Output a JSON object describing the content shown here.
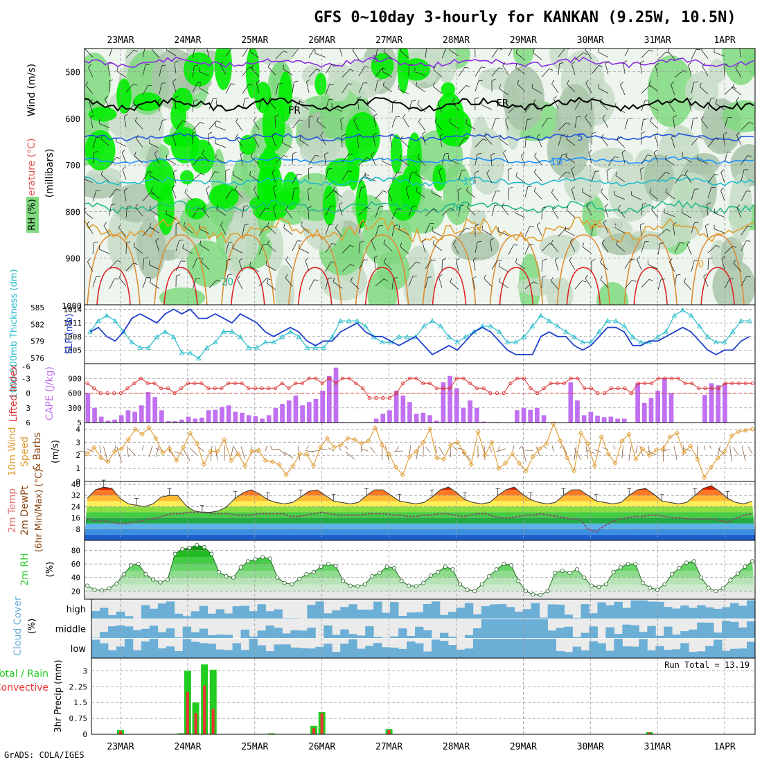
{
  "title": "GFS 0~10day 3-hourly for KANKAN (9.25W, 10.5N)",
  "footer": "GrADS: COLA/IGES",
  "dates": [
    "23MAR",
    "24MAR",
    "25MAR",
    "26MAR",
    "27MAR",
    "28MAR",
    "29MAR",
    "30MAR",
    "31MAR",
    "1APR"
  ],
  "colors": {
    "rh_dark": "#00ee00",
    "rh_mid": "#7fd97f",
    "rh_light": "#c7dcc7",
    "rh_pale": "#eef5ee",
    "slp": "#1e3fcc",
    "thickness": "#22bbcc",
    "lifted": "#dd3333",
    "cape": "#c070f0",
    "wind10": "#e09a30",
    "barb": "#8a5a3a",
    "cloud": "#6baed6",
    "cloud_bg": "#ebebeb",
    "rain_total": "#22cc22",
    "rain_conv": "#ee3333",
    "rh2m": "#33cc33"
  },
  "chart_data": [
    {
      "name": "upper-air",
      "type": "heatmap",
      "ylabel_wind": "Wind (m/s)",
      "ylabel_temp": "Temperature (°C)",
      "ylabel_rh": "RH (%)",
      "ylabel_units": "(millibars)",
      "yticks": [
        500,
        600,
        700,
        800,
        900
      ],
      "ylim": [
        1000,
        450
      ],
      "ybottom_label": "1000",
      "isotherm_labels": [
        {
          "text": "-5",
          "day": 3.7,
          "p": 472
        },
        {
          "text": "FR",
          "day": 2.5,
          "p": 582
        },
        {
          "text": "FR",
          "day": 5.6,
          "p": 567
        },
        {
          "text": "5",
          "day": 6.8,
          "p": 640
        },
        {
          "text": "10",
          "day": 6.4,
          "p": 692
        },
        {
          "text": "15",
          "day": 5.1,
          "p": 735
        },
        {
          "text": "20",
          "day": 4.9,
          "p": 792
        },
        {
          "text": "20",
          "day": 1.5,
          "p": 950
        },
        {
          "text": "25",
          "day": 5.2,
          "p": 841
        },
        {
          "text": "25",
          "day": 7.0,
          "p": 827
        },
        {
          "text": "30",
          "day": 7.3,
          "p": 828
        },
        {
          "text": "0",
          "day": 8.6,
          "p": 912
        }
      ]
    },
    {
      "name": "slp-thickness",
      "type": "line",
      "ylabel_left": "1000-500mb Thickness (dm)",
      "ylabel_right": "SLP (mb)",
      "left_ticks": [
        "585",
        "582",
        "579",
        "576"
      ],
      "right_ticks": [
        "1014",
        "1011",
        "1008",
        "1005"
      ],
      "slp_range": [
        1002,
        1015
      ],
      "thick_range": [
        574,
        585
      ],
      "slp": [
        1009,
        1010,
        1008,
        1007,
        1009,
        1012,
        1013,
        1012,
        1011,
        1013,
        1014,
        1013,
        1014,
        1012,
        1012,
        1013,
        1012,
        1011,
        1013,
        1012,
        1011,
        1009,
        1008,
        1009,
        1010,
        1009,
        1007,
        1006,
        1007,
        1007,
        1009,
        1010,
        1011,
        1009,
        1008,
        1008,
        1007,
        1006,
        1007,
        1008,
        1006,
        1004,
        1005,
        1006,
        1005,
        1007,
        1009,
        1010,
        1009,
        1007,
        1005,
        1004,
        1004,
        1004,
        1008,
        1009,
        1008,
        1008,
        1006,
        1005,
        1006,
        1008,
        1010,
        1010,
        1009,
        1006,
        1006,
        1007,
        1007,
        1008,
        1009,
        1010,
        1009,
        1007,
        1005,
        1004,
        1005,
        1005,
        1007,
        1008
      ],
      "thickness": [
        580,
        582,
        583,
        582,
        580,
        578,
        577,
        577,
        579,
        580,
        579,
        576,
        576,
        575,
        577,
        578,
        580,
        580,
        579,
        577,
        577,
        578,
        578,
        579,
        580,
        579,
        577,
        577,
        577,
        579,
        582,
        582,
        582,
        581,
        579,
        578,
        578,
        579,
        579,
        579,
        581,
        582,
        581,
        579,
        578,
        579,
        580,
        581,
        581,
        580,
        578,
        578,
        579,
        581,
        583,
        582,
        581,
        580,
        579,
        578,
        578,
        580,
        582,
        582,
        581,
        579,
        578,
        578,
        579,
        580,
        583,
        584,
        583,
        581,
        579,
        578,
        578,
        580,
        582,
        582
      ]
    },
    {
      "name": "cape-lifted",
      "type": "bar",
      "ylabel_left": "Lifted Index",
      "ylabel_right": "CAPE (J/kg)",
      "left_ticks": [
        "-3",
        "0",
        "3",
        "6"
      ],
      "right_ticks": [
        "900",
        "600",
        "300"
      ],
      "top_tick": "-6",
      "cape_range": [
        0,
        1200
      ],
      "li_range": [
        -6,
        6
      ],
      "cape": [
        600,
        300,
        120,
        40,
        60,
        150,
        250,
        220,
        350,
        620,
        520,
        250,
        30,
        30,
        60,
        120,
        80,
        100,
        250,
        260,
        320,
        350,
        220,
        200,
        150,
        130,
        80,
        150,
        300,
        380,
        450,
        550,
        350,
        420,
        480,
        650,
        950,
        1120,
        10,
        5,
        5,
        10,
        10,
        80,
        180,
        250,
        650,
        550,
        420,
        180,
        200,
        150,
        40,
        820,
        950,
        700,
        300,
        450,
        300,
        20,
        10,
        10,
        0,
        0,
        250,
        300,
        260,
        300,
        150,
        0,
        0,
        0,
        820,
        450,
        150,
        220,
        140,
        110,
        120,
        80,
        80,
        0,
        800,
        400,
        500,
        650,
        900,
        600,
        0,
        0,
        0,
        0,
        560,
        800,
        760,
        800,
        0,
        0,
        0,
        0
      ],
      "lifted_index": [
        -2,
        -1,
        0,
        0,
        0,
        0,
        -1,
        -2,
        -3,
        -2,
        -2,
        -1,
        -1,
        0,
        -1,
        -2,
        -2,
        -2,
        -1,
        -1,
        -1,
        -2,
        -2,
        -2,
        -1,
        -1,
        -1,
        -1,
        -1,
        -2,
        -1,
        -2,
        -2,
        -3,
        -3,
        -2,
        -3,
        -2,
        -3,
        -3,
        -2,
        -1,
        1,
        1,
        1,
        1,
        0,
        -2,
        -3,
        -3,
        -2,
        -2,
        -1,
        -1,
        -1,
        -3,
        -3,
        -2,
        -1,
        -1,
        0,
        0,
        0,
        -2,
        -3,
        -3,
        -1,
        0,
        -1,
        -2,
        -2,
        -2,
        -3,
        -3,
        -1,
        -1,
        0,
        0,
        -1,
        -1,
        -1,
        0,
        -2,
        -2,
        -2,
        -3,
        -3,
        -3,
        -3,
        -2,
        -2,
        -1,
        -1,
        -1,
        -1,
        -2,
        -2,
        -2,
        -2,
        -2
      ]
    },
    {
      "name": "wind10m",
      "type": "line",
      "ylabel": "10m Wind Speed (m/s) & Barbs",
      "ylabel_a": "10m Wind",
      "ylabel_b": "Speed",
      "ylabel_c": "& Barbs",
      "ylabel_units": "(m/s)",
      "ticks": [
        "4",
        "3",
        "2",
        "1",
        "0"
      ],
      "range": [
        0,
        4.5
      ],
      "values": [
        2.1,
        2.6,
        1.8,
        1.5,
        2.3,
        2.5,
        3.2,
        4.0,
        3.6,
        4.1,
        3.3,
        2.2,
        2.5,
        1.6,
        2.6,
        3.7,
        2.9,
        1.3,
        2.3,
        2.3,
        3.2,
        1.6,
        2.1,
        1.2,
        2.3,
        2.4,
        1.6,
        1.5,
        1.3,
        0.5,
        1.2,
        2.1,
        2.1,
        1.2,
        2.6,
        3.3,
        2.6,
        2.8,
        3.3,
        3.2,
        2.9,
        3.1,
        4.1,
        2.8,
        2.1,
        1.1,
        0.5,
        1.9,
        2.3,
        3.0,
        4.0,
        1.8,
        1.7,
        2.8,
        3.0,
        2.2,
        1.3,
        3.8,
        2.0,
        3.0,
        1.0,
        1.4,
        2.1,
        1.4,
        0.8,
        1.9,
        2.5,
        2.9,
        4.4,
        3.1,
        1.8,
        0.8,
        3.7,
        2.9,
        1.2,
        3.4,
        2.1,
        1.4,
        3.1,
        3.6,
        1.7,
        2.5,
        2.0,
        2.4,
        2.5,
        3.4,
        3.7,
        2.2,
        2.7,
        1.7,
        0.3,
        1.1,
        1.8,
        2.3,
        3.5,
        3.8,
        3.9,
        4.0
      ]
    },
    {
      "name": "temp2m",
      "type": "area",
      "ylabel_a": "2m Temp",
      "ylabel_b": "2m DewPt",
      "ylabel_c": "(6hr Min/Max) (°C)",
      "ticks": [
        "40",
        "32",
        "24",
        "16",
        "8"
      ],
      "range": [
        0,
        42
      ],
      "temp": [
        30,
        36,
        38,
        37,
        30,
        26,
        25,
        24,
        26,
        31,
        32,
        32,
        25,
        21,
        20,
        20,
        21,
        24,
        30,
        34,
        36,
        33,
        29,
        27,
        26,
        27,
        31,
        35,
        36,
        32,
        28,
        27,
        26,
        27,
        32,
        36,
        36,
        32,
        28,
        27,
        26,
        27,
        31,
        36,
        38,
        34,
        29,
        27,
        26,
        27,
        32,
        36,
        38,
        33,
        29,
        27,
        26,
        27,
        32,
        36,
        36,
        32,
        28,
        27,
        26,
        27,
        32,
        36,
        37,
        33,
        28,
        27,
        26,
        27,
        32,
        37,
        39,
        35,
        30,
        27,
        26,
        28
      ],
      "dewpt": [
        15,
        14,
        14,
        13,
        12,
        12,
        13,
        14,
        15,
        16,
        18,
        19,
        19,
        20,
        20,
        20,
        19,
        19,
        19,
        18,
        18,
        18,
        19,
        19,
        19,
        19,
        17,
        17,
        18,
        19,
        20,
        19,
        18,
        18,
        18,
        18,
        19,
        19,
        19,
        18,
        18,
        17,
        17,
        18,
        18,
        19,
        19,
        18,
        17,
        18,
        19,
        19,
        17,
        16,
        16,
        17,
        18,
        18,
        19,
        18,
        17,
        16,
        15,
        15,
        8,
        6,
        10,
        13,
        15,
        16,
        17,
        17,
        18,
        18,
        17,
        16,
        16,
        15,
        15,
        15,
        15,
        14,
        13,
        16,
        18,
        19
      ]
    },
    {
      "name": "rh2m",
      "type": "area",
      "ylabel": "2m RH (%)",
      "ylabel_a": "2m RH",
      "ylabel_units": "(%)",
      "ticks": [
        "80",
        "60",
        "40",
        "20"
      ],
      "range": [
        8,
        95
      ],
      "values": [
        28,
        22,
        21,
        24,
        31,
        45,
        58,
        60,
        45,
        37,
        33,
        37,
        75,
        82,
        84,
        88,
        85,
        75,
        48,
        42,
        40,
        55,
        64,
        67,
        70,
        68,
        40,
        32,
        30,
        38,
        45,
        48,
        56,
        60,
        57,
        35,
        28,
        27,
        30,
        42,
        47,
        56,
        54,
        35,
        28,
        27,
        32,
        43,
        48,
        56,
        52,
        30,
        22,
        20,
        30,
        42,
        52,
        60,
        58,
        35,
        20,
        15,
        14,
        20,
        47,
        50,
        47,
        52,
        40,
        28,
        26,
        30,
        48,
        55,
        60,
        60,
        32,
        25,
        22,
        30,
        45,
        54,
        62,
        64,
        40,
        25,
        20,
        24,
        36,
        46,
        56,
        64
      ],
      "dots_all": true
    },
    {
      "name": "cloud-cover",
      "type": "heatmap",
      "ylabel": "Cloud Cover (%)",
      "ylabel_a": "Cloud Cover",
      "ylabel_units": "(%)",
      "levels": [
        "high",
        "middle",
        "low"
      ]
    },
    {
      "name": "precip",
      "type": "bar",
      "ylabel_left": "Total / Rain",
      "ylabel_right": "Convective",
      "ylabel_units": "3hr Precip (mm)",
      "ticks": [
        "3",
        "2.25",
        "1.5",
        "0.75",
        "0"
      ],
      "range": [
        0,
        3.6
      ],
      "run_total": "Run Total = 13.19",
      "bars": [
        {
          "day": 0.0,
          "total": 0.2,
          "conv": 0.15
        },
        {
          "day": 0.9,
          "total": 0.05,
          "conv": 0.03
        },
        {
          "day": 1.0,
          "total": 3.0,
          "conv": 2.0
        },
        {
          "day": 1.12,
          "total": 1.5,
          "conv": 1.0
        },
        {
          "day": 1.25,
          "total": 3.3,
          "conv": 2.3
        },
        {
          "day": 1.38,
          "total": 3.05,
          "conv": 1.2
        },
        {
          "day": 2.25,
          "total": 0.05,
          "conv": 0.03
        },
        {
          "day": 2.88,
          "total": 0.4,
          "conv": 0.3
        },
        {
          "day": 3.0,
          "total": 1.05,
          "conv": 1.0
        },
        {
          "day": 4.0,
          "total": 0.25,
          "conv": 0.2
        },
        {
          "day": 7.88,
          "total": 0.1,
          "conv": 0.08
        }
      ]
    }
  ]
}
